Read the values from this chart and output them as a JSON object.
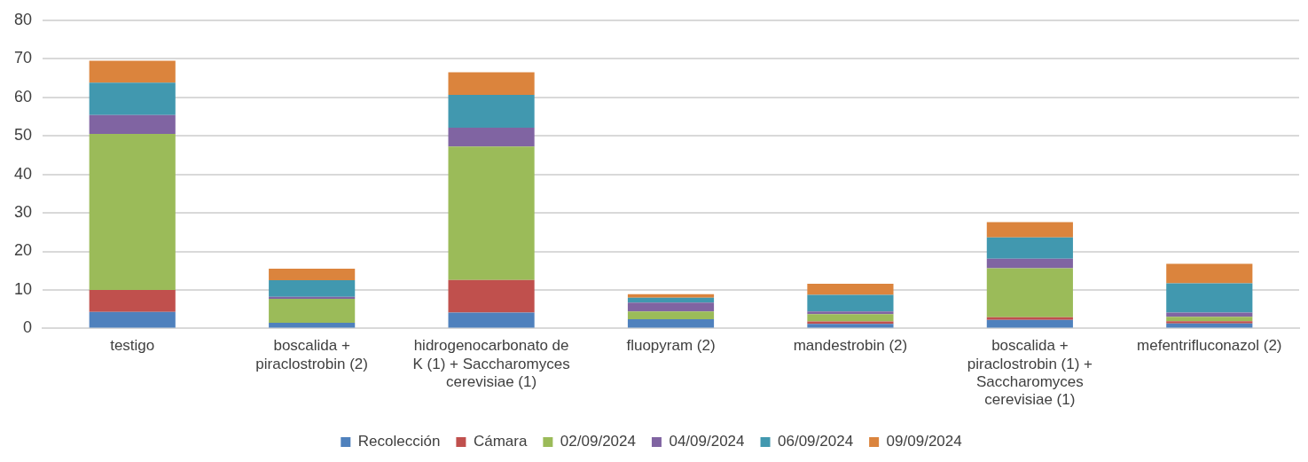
{
  "chart_data": {
    "type": "bar",
    "stacked": true,
    "categories": [
      "testigo",
      "boscalida + piraclostrobin (2)",
      "hidrogenocarbonato de K (1) + Saccharomyces cerevisiae (1)",
      "fluopyram (2)",
      "mandestrobin (2)",
      "boscalida + piraclostrobin (1) + Saccharomyces cerevisiae (1)",
      "mefentrifluconazol (2)"
    ],
    "series": [
      {
        "name": "Recolección",
        "color": "#4f81bd",
        "values": [
          4.3,
          1.5,
          4.1,
          2.4,
          1.2,
          2.2,
          1.3
        ]
      },
      {
        "name": "Cámara",
        "color": "#c0504d",
        "values": [
          5.7,
          0,
          8.5,
          0,
          0.6,
          0.7,
          0.6
        ]
      },
      {
        "name": "02/09/2024",
        "color": "#9bbb59",
        "values": [
          40.5,
          6.2,
          34.6,
          2.0,
          1.9,
          12.7,
          1.1
        ]
      },
      {
        "name": "04/09/2024",
        "color": "#8064a2",
        "values": [
          4.9,
          0.5,
          4.9,
          2.3,
          0.7,
          2.5,
          1.1
        ]
      },
      {
        "name": "06/09/2024",
        "color": "#4198af",
        "values": [
          8.4,
          4.3,
          8.5,
          1.3,
          4.3,
          5.5,
          7.6
        ]
      },
      {
        "name": "09/09/2024",
        "color": "#db843d",
        "values": [
          5.7,
          3.0,
          5.9,
          0.9,
          2.9,
          4.0,
          5.1
        ]
      }
    ],
    "ylim": [
      0,
      80
    ],
    "yticks": [
      0,
      10,
      20,
      30,
      40,
      50,
      60,
      70,
      80
    ],
    "grid": "y",
    "legend": "bottom"
  }
}
